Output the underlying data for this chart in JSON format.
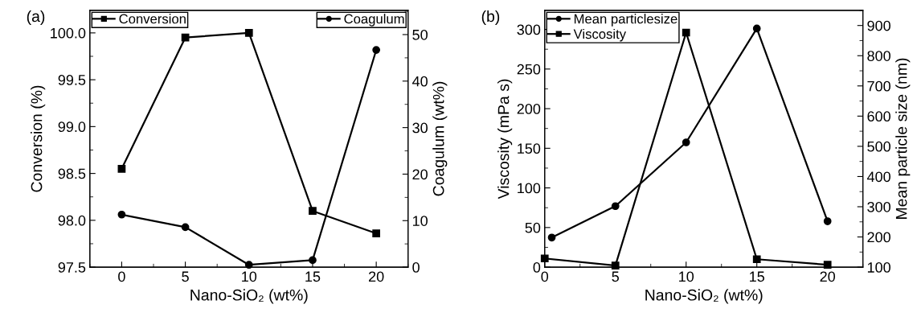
{
  "chart_data": [
    {
      "type": "line",
      "title": "(a)",
      "xlabel": "Nano-SiO₂ (wt%)",
      "ylabel": "Conversion (%)",
      "y2label": "Coagulum (wt%)",
      "xlim": [
        -2.5,
        22.5
      ],
      "xticks": [
        0,
        5,
        10,
        15,
        20
      ],
      "ylim": [
        97.5,
        100.24
      ],
      "yticks": [
        {
          "value": 97.5,
          "label": "97.5"
        },
        {
          "value": 98,
          "label": "98.0"
        },
        {
          "value": 98.5,
          "label": "98.5"
        },
        {
          "value": 99,
          "label": "99.0"
        },
        {
          "value": 99.5,
          "label": "99.5"
        },
        {
          "value": 100,
          "label": "100.0"
        }
      ],
      "y2lim": [
        0,
        55.2
      ],
      "y2ticks": [
        0,
        10,
        20,
        30,
        40,
        50
      ],
      "legend": "top",
      "grid": false,
      "series": [
        {
          "name": "Conversion",
          "color": "#000000",
          "marker": "square",
          "x": [
            0,
            5,
            10,
            15,
            20
          ],
          "values": [
            98.55,
            99.95,
            100.0,
            98.1,
            97.86
          ]
        },
        {
          "name": "Coagulum",
          "color": "#000000",
          "marker": "circle",
          "axis": "y2",
          "x": [
            0,
            5,
            10,
            15,
            20
          ],
          "values": [
            11.3,
            8.6,
            0.5,
            1.5,
            46.7
          ]
        }
      ]
    },
    {
      "type": "line",
      "title": "(b)",
      "xlabel": "Nano-SiO₂ (wt%)",
      "ylabel": "Viscosity (mPa s)",
      "y2label": "Mean particle size (nm)",
      "xlim": [
        0,
        22.5
      ],
      "xticks": [
        0,
        5,
        10,
        15,
        20
      ],
      "ylim": [
        0,
        324
      ],
      "yticks": [
        0,
        50,
        100,
        150,
        200,
        250,
        300
      ],
      "y2lim": [
        100,
        950
      ],
      "y2ticks": [
        100,
        200,
        300,
        400,
        500,
        600,
        700,
        800,
        900
      ],
      "legend": "top left",
      "grid": false,
      "series": [
        {
          "name": "Mean particlesize",
          "color": "#000000",
          "marker": "circle",
          "axis": "y2",
          "x": [
            0.5,
            5,
            10,
            15,
            20
          ],
          "values": [
            198,
            302,
            513,
            890,
            252
          ]
        },
        {
          "name": "Viscosity",
          "color": "#000000",
          "marker": "square",
          "x": [
            0,
            5,
            10,
            15,
            20
          ],
          "values": [
            11,
            2,
            296,
            10,
            3
          ]
        }
      ]
    }
  ]
}
